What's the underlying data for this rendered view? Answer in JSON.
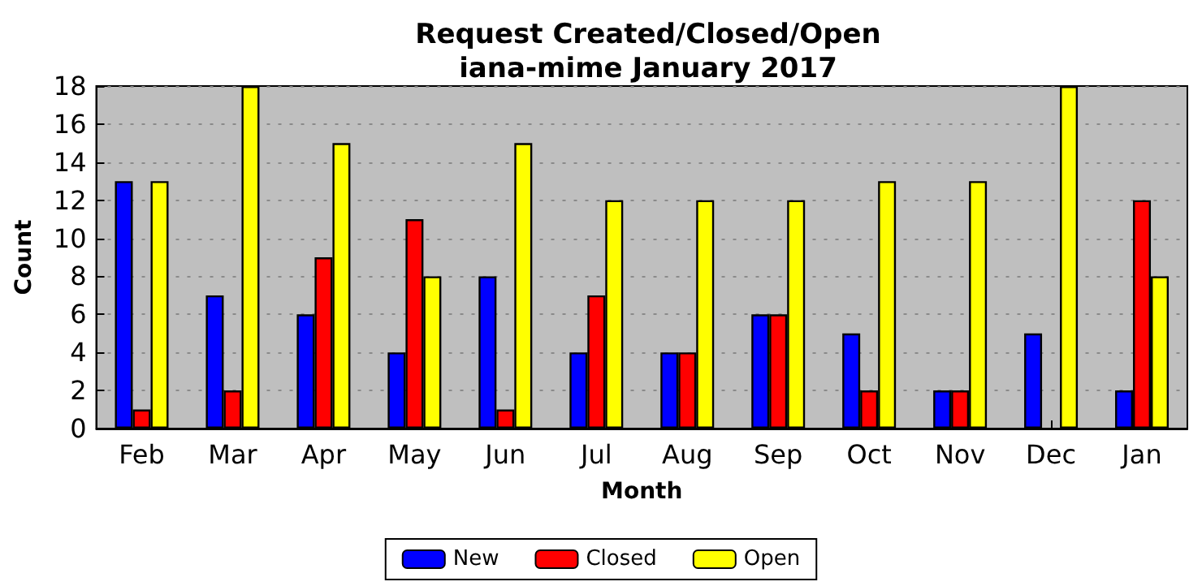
{
  "chart_data": {
    "type": "bar",
    "title": "Request Created/Closed/Open\niana-mime January 2017",
    "xlabel": "Month",
    "ylabel": "Count",
    "categories": [
      "Feb",
      "Mar",
      "Apr",
      "May",
      "Jun",
      "Jul",
      "Aug",
      "Sep",
      "Oct",
      "Nov",
      "Dec",
      "Jan"
    ],
    "series": [
      {
        "name": "New",
        "color": "#0000ff",
        "values": [
          13,
          7,
          6,
          4,
          8,
          4,
          4,
          6,
          5,
          2,
          5,
          2
        ]
      },
      {
        "name": "Closed",
        "color": "#ff0000",
        "values": [
          1,
          2,
          9,
          11,
          1,
          7,
          4,
          6,
          2,
          2,
          0,
          12
        ]
      },
      {
        "name": "Open",
        "color": "#ffff00",
        "values": [
          13,
          18,
          15,
          8,
          15,
          12,
          12,
          12,
          13,
          13,
          18,
          8
        ]
      }
    ],
    "ylim": [
      0,
      18
    ],
    "yticks": [
      0,
      2,
      4,
      6,
      8,
      10,
      12,
      14,
      16,
      18
    ],
    "grid": "y",
    "legend": "bottom"
  }
}
